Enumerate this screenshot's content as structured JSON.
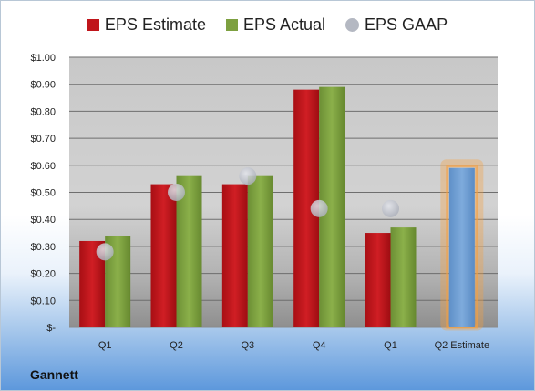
{
  "chart_data": {
    "type": "bar",
    "categories": [
      "Q1",
      "Q2",
      "Q3",
      "Q4",
      "Q1",
      "Q2 Estimate"
    ],
    "series": [
      {
        "name": "EPS Estimate",
        "values": [
          0.32,
          0.53,
          0.53,
          0.88,
          0.35,
          null
        ],
        "color": "#c0151b"
      },
      {
        "name": "EPS Actual",
        "values": [
          0.34,
          0.56,
          0.56,
          0.89,
          0.37,
          null
        ],
        "color": "#7da040"
      },
      {
        "name": "EPS GAAP",
        "type": "scatter",
        "values": [
          0.28,
          0.5,
          0.56,
          0.44,
          0.44,
          null
        ],
        "color": "#b4b8c2"
      }
    ],
    "forecast": {
      "category": "Q2 Estimate",
      "value": 0.59,
      "color": "#6f9fd4",
      "highlight": "#f5a040"
    },
    "ylim": [
      0,
      1.0
    ],
    "yticks": [
      0,
      0.1,
      0.2,
      0.3,
      0.4,
      0.5,
      0.6,
      0.7,
      0.8,
      0.9,
      1.0
    ],
    "ytick_labels": [
      "$-",
      "$0.10",
      "$0.20",
      "$0.30",
      "$0.40",
      "$0.50",
      "$0.60",
      "$0.70",
      "$0.80",
      "$0.90",
      "$1.00"
    ],
    "grid": true,
    "legend_position": "top-center",
    "company": "Gannett"
  }
}
